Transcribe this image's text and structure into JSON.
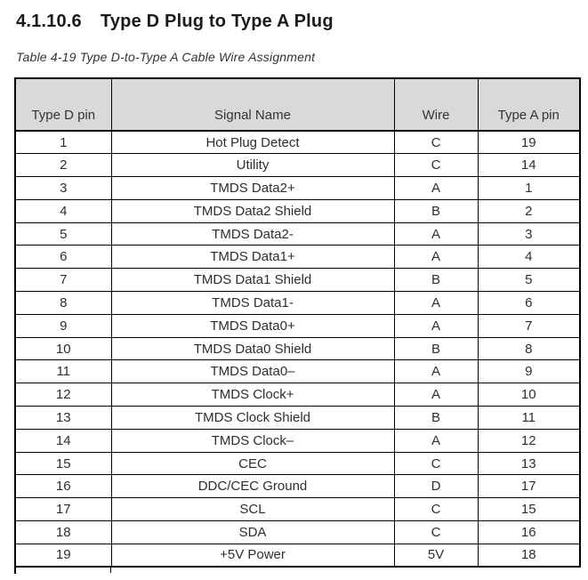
{
  "heading": {
    "number": "4.1.10.6",
    "title": "Type D Plug to Type A Plug"
  },
  "caption": "Table 4-19 Type D-to-Type A Cable Wire Assignment",
  "table": {
    "columns": [
      "Type D pin",
      "Signal Name",
      "Wire",
      "Type A pin"
    ],
    "rows": [
      [
        "1",
        "Hot Plug Detect",
        "C",
        "19"
      ],
      [
        "2",
        "Utility",
        "C",
        "14"
      ],
      [
        "3",
        "TMDS Data2+",
        "A",
        "1"
      ],
      [
        "4",
        "TMDS Data2 Shield",
        "B",
        "2"
      ],
      [
        "5",
        "TMDS Data2-",
        "A",
        "3"
      ],
      [
        "6",
        "TMDS Data1+",
        "A",
        "4"
      ],
      [
        "7",
        "TMDS Data1 Shield",
        "B",
        "5"
      ],
      [
        "8",
        "TMDS Data1-",
        "A",
        "6"
      ],
      [
        "9",
        "TMDS Data0+",
        "A",
        "7"
      ],
      [
        "10",
        "TMDS Data0 Shield",
        "B",
        "8"
      ],
      [
        "11",
        "TMDS Data0–",
        "A",
        "9"
      ],
      [
        "12",
        "TMDS Clock+",
        "A",
        "10"
      ],
      [
        "13",
        "TMDS Clock Shield",
        "B",
        "11"
      ],
      [
        "14",
        "TMDS Clock–",
        "A",
        "12"
      ],
      [
        "15",
        "CEC",
        "C",
        "13"
      ],
      [
        "16",
        "DDC/CEC Ground",
        "D",
        "17"
      ],
      [
        "17",
        "SCL",
        "C",
        "15"
      ],
      [
        "18",
        "SDA",
        "C",
        "16"
      ],
      [
        "19",
        "+5V Power",
        "5V",
        "18"
      ]
    ]
  },
  "colors": {
    "header_bg": "#d9d9d9",
    "border": "#000000"
  }
}
